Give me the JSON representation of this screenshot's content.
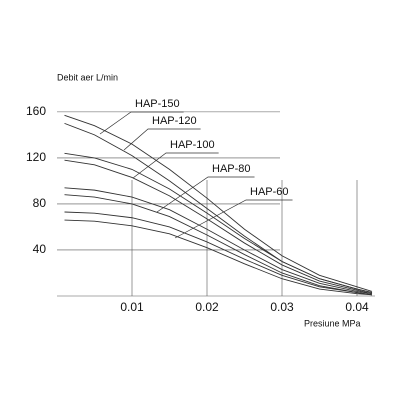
{
  "chart_data": {
    "type": "line",
    "y_label": "Debit aer L/min",
    "x_label": "Presiune MPa",
    "x": [
      0.001,
      0.005,
      0.01,
      0.015,
      0.02,
      0.025,
      0.03,
      0.035,
      0.04,
      0.042
    ],
    "series": [
      {
        "name": "HAP-150",
        "color": "#333333",
        "curves": [
          [
            157,
            148,
            132,
            110,
            85,
            58,
            35,
            18,
            8,
            4
          ]
        ]
      },
      {
        "name": "HAP-120",
        "color": "#333333",
        "curves": [
          [
            150,
            140,
            122,
            100,
            76,
            52,
            30,
            15,
            6,
            3
          ]
        ]
      },
      {
        "name": "HAP-100",
        "color": "#333333",
        "curves": [
          [
            124,
            120,
            110,
            93,
            72,
            50,
            30,
            15,
            6,
            3
          ],
          [
            118,
            114,
            103,
            87,
            67,
            46,
            27,
            13,
            5,
            2
          ]
        ]
      },
      {
        "name": "HAP-80",
        "color": "#333333",
        "curves": [
          [
            94,
            92,
            86,
            75,
            58,
            40,
            23,
            11,
            4,
            2
          ],
          [
            88,
            86,
            80,
            69,
            53,
            36,
            20,
            9,
            3,
            1
          ]
        ]
      },
      {
        "name": "HAP-60",
        "color": "#333333",
        "curves": [
          [
            73,
            72,
            68,
            60,
            47,
            32,
            18,
            8,
            3,
            1
          ],
          [
            66,
            65,
            61,
            54,
            42,
            28,
            15,
            6,
            2,
            1
          ]
        ]
      }
    ],
    "xlim": [
      0,
      0.0424
    ],
    "ylim": [
      0,
      179
    ],
    "xticks": [
      0.01,
      0.02,
      0.03,
      0.04
    ],
    "yticks": [
      40,
      80,
      120,
      160
    ],
    "grid": true
  }
}
